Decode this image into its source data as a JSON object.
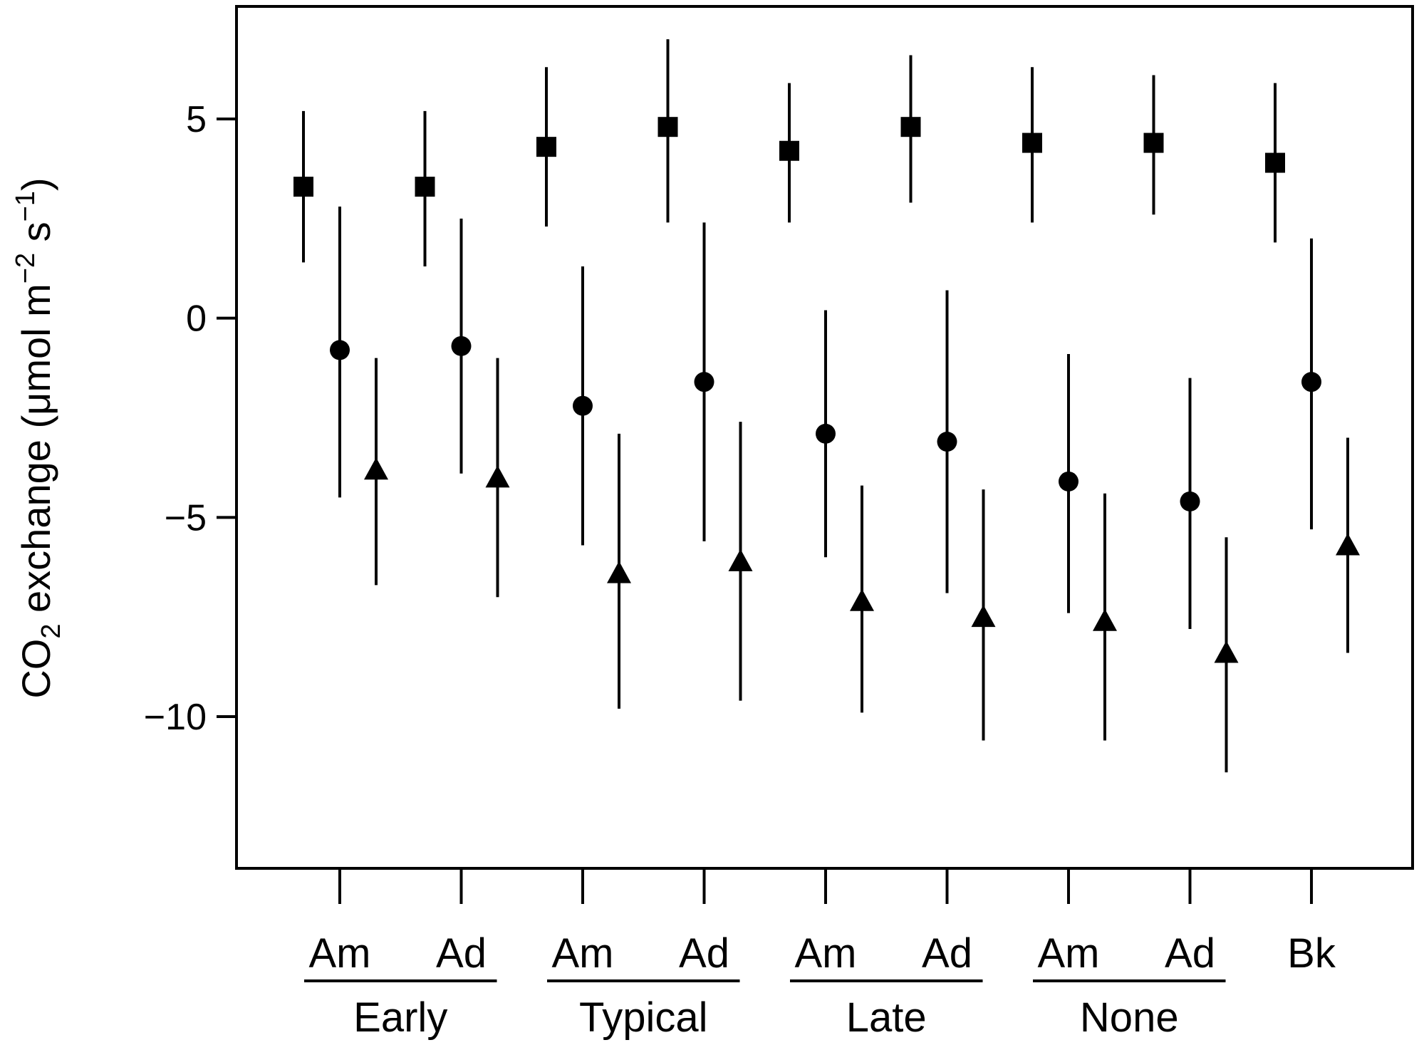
{
  "chart_data": {
    "type": "scatter",
    "title": "",
    "ylabel": {
      "prefix": "CO",
      "sub": "2",
      "middle": " exchange (μmol m",
      "sup1": "−2",
      "space": " s",
      "sup2": "−1",
      "suffix": ")"
    },
    "ylim": [
      -13.8,
      7.8
    ],
    "yticks": [
      {
        "value": 5,
        "label": "5"
      },
      {
        "value": 0,
        "label": "0"
      },
      {
        "value": -5,
        "label": "−5"
      },
      {
        "value": -10,
        "label": "−10"
      }
    ],
    "grid": false,
    "categories": [
      {
        "label": "Am",
        "group": "Early"
      },
      {
        "label": "Ad",
        "group": "Early"
      },
      {
        "label": "Am",
        "group": "Typical"
      },
      {
        "label": "Ad",
        "group": "Typical"
      },
      {
        "label": "Am",
        "group": "Late"
      },
      {
        "label": "Ad",
        "group": "Late"
      },
      {
        "label": "Am",
        "group": "None"
      },
      {
        "label": "Ad",
        "group": "None"
      },
      {
        "label": "Bk",
        "group": ""
      }
    ],
    "groups": [
      "Early",
      "Typical",
      "Late",
      "None"
    ],
    "series": [
      {
        "marker": "square",
        "values": [
          3.3,
          3.3,
          4.3,
          4.8,
          4.2,
          4.8,
          4.4,
          4.4,
          3.9
        ],
        "low": [
          1.4,
          1.3,
          2.3,
          2.4,
          2.4,
          2.9,
          2.4,
          2.6,
          1.9
        ],
        "high": [
          5.2,
          5.2,
          6.3,
          7.0,
          5.9,
          6.6,
          6.3,
          6.1,
          5.9
        ]
      },
      {
        "marker": "circle",
        "values": [
          -0.8,
          -0.7,
          -2.2,
          -1.6,
          -2.9,
          -3.1,
          -4.1,
          -4.6,
          -1.6
        ],
        "low": [
          -4.5,
          -3.9,
          -5.7,
          -5.6,
          -6.0,
          -6.9,
          -7.4,
          -7.8,
          -5.3
        ],
        "high": [
          2.8,
          2.5,
          1.3,
          2.4,
          0.2,
          0.7,
          -0.9,
          -1.5,
          2.0
        ]
      },
      {
        "marker": "triangle",
        "values": [
          -3.8,
          -4.0,
          -6.4,
          -6.1,
          -7.1,
          -7.5,
          -7.6,
          -8.4,
          -5.7
        ],
        "low": [
          -6.7,
          -7.0,
          -9.8,
          -9.6,
          -9.9,
          -10.6,
          -10.6,
          -11.4,
          -8.4
        ],
        "high": [
          -1.0,
          -1.0,
          -2.9,
          -2.6,
          -4.2,
          -4.3,
          -4.4,
          -5.5,
          -3.0
        ]
      }
    ]
  }
}
